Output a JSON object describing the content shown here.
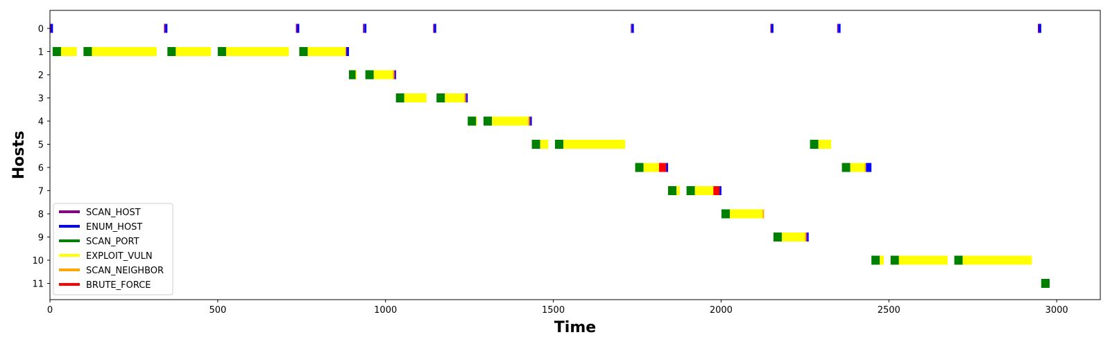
{
  "chart_data": {
    "type": "gantt",
    "xlabel": "Time",
    "ylabel": "Hosts",
    "xlim": [
      0,
      3130
    ],
    "x_ticks": [
      0,
      500,
      1000,
      1500,
      2000,
      2500,
      3000
    ],
    "hosts": [
      0,
      1,
      2,
      3,
      4,
      5,
      6,
      7,
      8,
      9,
      10,
      11
    ],
    "legend_position": "lower-left",
    "actions": [
      {
        "name": "SCAN_HOST",
        "color": "#800080"
      },
      {
        "name": "ENUM_HOST",
        "color": "#0000ff"
      },
      {
        "name": "SCAN_PORT",
        "color": "#008000"
      },
      {
        "name": "EXPLOIT_VULN",
        "color": "#ffff00"
      },
      {
        "name": "SCAN_NEIGHBOR",
        "color": "#ffa500"
      },
      {
        "name": "BRUTE_FORCE",
        "color": "#ff0000"
      }
    ],
    "segments": [
      {
        "host": 0,
        "action": "SCAN_HOST",
        "start": 0,
        "end": 3
      },
      {
        "host": 0,
        "action": "ENUM_HOST",
        "start": 3,
        "end": 9
      },
      {
        "host": 0,
        "action": "SCAN_HOST",
        "start": 340,
        "end": 344
      },
      {
        "host": 0,
        "action": "ENUM_HOST",
        "start": 344,
        "end": 350
      },
      {
        "host": 0,
        "action": "SCAN_HOST",
        "start": 733,
        "end": 737
      },
      {
        "host": 0,
        "action": "ENUM_HOST",
        "start": 737,
        "end": 743
      },
      {
        "host": 0,
        "action": "SCAN_HOST",
        "start": 933,
        "end": 937
      },
      {
        "host": 0,
        "action": "ENUM_HOST",
        "start": 937,
        "end": 943
      },
      {
        "host": 0,
        "action": "SCAN_HOST",
        "start": 1142,
        "end": 1145
      },
      {
        "host": 0,
        "action": "ENUM_HOST",
        "start": 1145,
        "end": 1151
      },
      {
        "host": 0,
        "action": "SCAN_HOST",
        "start": 1731,
        "end": 1734
      },
      {
        "host": 0,
        "action": "ENUM_HOST",
        "start": 1734,
        "end": 1740
      },
      {
        "host": 0,
        "action": "SCAN_HOST",
        "start": 2147,
        "end": 2150
      },
      {
        "host": 0,
        "action": "ENUM_HOST",
        "start": 2150,
        "end": 2156
      },
      {
        "host": 0,
        "action": "SCAN_HOST",
        "start": 2346,
        "end": 2349
      },
      {
        "host": 0,
        "action": "ENUM_HOST",
        "start": 2349,
        "end": 2356
      },
      {
        "host": 0,
        "action": "SCAN_HOST",
        "start": 2944,
        "end": 2947
      },
      {
        "host": 0,
        "action": "ENUM_HOST",
        "start": 2947,
        "end": 2954
      },
      {
        "host": 1,
        "action": "SCAN_PORT",
        "start": 8,
        "end": 33
      },
      {
        "host": 1,
        "action": "EXPLOIT_VULN",
        "start": 33,
        "end": 80
      },
      {
        "host": 1,
        "action": "SCAN_PORT",
        "start": 100,
        "end": 125
      },
      {
        "host": 1,
        "action": "EXPLOIT_VULN",
        "start": 125,
        "end": 318
      },
      {
        "host": 1,
        "action": "SCAN_PORT",
        "start": 350,
        "end": 375
      },
      {
        "host": 1,
        "action": "EXPLOIT_VULN",
        "start": 375,
        "end": 480
      },
      {
        "host": 1,
        "action": "SCAN_PORT",
        "start": 500,
        "end": 525
      },
      {
        "host": 1,
        "action": "EXPLOIT_VULN",
        "start": 525,
        "end": 712
      },
      {
        "host": 1,
        "action": "SCAN_PORT",
        "start": 743,
        "end": 768
      },
      {
        "host": 1,
        "action": "EXPLOIT_VULN",
        "start": 768,
        "end": 882
      },
      {
        "host": 1,
        "action": "SCAN_HOST",
        "start": 882,
        "end": 885
      },
      {
        "host": 1,
        "action": "ENUM_HOST",
        "start": 885,
        "end": 891
      },
      {
        "host": 2,
        "action": "SCAN_PORT",
        "start": 891,
        "end": 911
      },
      {
        "host": 2,
        "action": "EXPLOIT_VULN",
        "start": 911,
        "end": 914
      },
      {
        "host": 2,
        "action": "SCAN_PORT",
        "start": 940,
        "end": 965
      },
      {
        "host": 2,
        "action": "EXPLOIT_VULN",
        "start": 965,
        "end": 1022
      },
      {
        "host": 2,
        "action": "SCAN_NEIGHBOR",
        "start": 1022,
        "end": 1026
      },
      {
        "host": 2,
        "action": "SCAN_HOST",
        "start": 1026,
        "end": 1029
      },
      {
        "host": 2,
        "action": "ENUM_HOST",
        "start": 1029,
        "end": 1031
      },
      {
        "host": 3,
        "action": "SCAN_PORT",
        "start": 1031,
        "end": 1056
      },
      {
        "host": 3,
        "action": "EXPLOIT_VULN",
        "start": 1056,
        "end": 1122
      },
      {
        "host": 3,
        "action": "SCAN_PORT",
        "start": 1152,
        "end": 1177
      },
      {
        "host": 3,
        "action": "EXPLOIT_VULN",
        "start": 1177,
        "end": 1235
      },
      {
        "host": 3,
        "action": "SCAN_NEIGHBOR",
        "start": 1235,
        "end": 1239
      },
      {
        "host": 3,
        "action": "SCAN_HOST",
        "start": 1239,
        "end": 1242
      },
      {
        "host": 3,
        "action": "ENUM_HOST",
        "start": 1242,
        "end": 1245
      },
      {
        "host": 4,
        "action": "SCAN_PORT",
        "start": 1245,
        "end": 1270
      },
      {
        "host": 4,
        "action": "EXPLOIT_VULN",
        "start": 1270,
        "end": 1272
      },
      {
        "host": 4,
        "action": "SCAN_PORT",
        "start": 1292,
        "end": 1317
      },
      {
        "host": 4,
        "action": "EXPLOIT_VULN",
        "start": 1317,
        "end": 1425
      },
      {
        "host": 4,
        "action": "SCAN_NEIGHBOR",
        "start": 1425,
        "end": 1429
      },
      {
        "host": 4,
        "action": "SCAN_HOST",
        "start": 1429,
        "end": 1432
      },
      {
        "host": 4,
        "action": "ENUM_HOST",
        "start": 1432,
        "end": 1436
      },
      {
        "host": 5,
        "action": "SCAN_PORT",
        "start": 1436,
        "end": 1461
      },
      {
        "host": 5,
        "action": "EXPLOIT_VULN",
        "start": 1461,
        "end": 1485
      },
      {
        "host": 5,
        "action": "SCAN_PORT",
        "start": 1505,
        "end": 1530
      },
      {
        "host": 5,
        "action": "EXPLOIT_VULN",
        "start": 1530,
        "end": 1714
      },
      {
        "host": 5,
        "action": "SCAN_PORT",
        "start": 2265,
        "end": 2290
      },
      {
        "host": 5,
        "action": "EXPLOIT_VULN",
        "start": 2290,
        "end": 2328
      },
      {
        "host": 6,
        "action": "SCAN_PORT",
        "start": 1744,
        "end": 1769
      },
      {
        "host": 6,
        "action": "EXPLOIT_VULN",
        "start": 1769,
        "end": 1815
      },
      {
        "host": 6,
        "action": "BRUTE_FORCE",
        "start": 1815,
        "end": 1835
      },
      {
        "host": 6,
        "action": "SCAN_HOST",
        "start": 1835,
        "end": 1838
      },
      {
        "host": 6,
        "action": "ENUM_HOST",
        "start": 1838,
        "end": 1842
      },
      {
        "host": 6,
        "action": "SCAN_PORT",
        "start": 2360,
        "end": 2385
      },
      {
        "host": 6,
        "action": "EXPLOIT_VULN",
        "start": 2385,
        "end": 2428
      },
      {
        "host": 6,
        "action": "SCAN_NEIGHBOR",
        "start": 2428,
        "end": 2432
      },
      {
        "host": 6,
        "action": "ENUM_HOST",
        "start": 2432,
        "end": 2448
      },
      {
        "host": 7,
        "action": "SCAN_PORT",
        "start": 1842,
        "end": 1867
      },
      {
        "host": 7,
        "action": "EXPLOIT_VULN",
        "start": 1867,
        "end": 1877
      },
      {
        "host": 7,
        "action": "SCAN_PORT",
        "start": 1897,
        "end": 1922
      },
      {
        "host": 7,
        "action": "EXPLOIT_VULN",
        "start": 1922,
        "end": 1977
      },
      {
        "host": 7,
        "action": "BRUTE_FORCE",
        "start": 1977,
        "end": 1994
      },
      {
        "host": 7,
        "action": "SCAN_HOST",
        "start": 1994,
        "end": 1997
      },
      {
        "host": 7,
        "action": "ENUM_HOST",
        "start": 1997,
        "end": 2001
      },
      {
        "host": 8,
        "action": "SCAN_PORT",
        "start": 2001,
        "end": 2026
      },
      {
        "host": 8,
        "action": "EXPLOIT_VULN",
        "start": 2026,
        "end": 2124
      },
      {
        "host": 8,
        "action": "SCAN_NEIGHBOR",
        "start": 2124,
        "end": 2128
      },
      {
        "host": 9,
        "action": "SCAN_PORT",
        "start": 2156,
        "end": 2181
      },
      {
        "host": 9,
        "action": "EXPLOIT_VULN",
        "start": 2181,
        "end": 2250
      },
      {
        "host": 9,
        "action": "SCAN_NEIGHBOR",
        "start": 2250,
        "end": 2254
      },
      {
        "host": 9,
        "action": "SCAN_HOST",
        "start": 2254,
        "end": 2257
      },
      {
        "host": 9,
        "action": "ENUM_HOST",
        "start": 2257,
        "end": 2261
      },
      {
        "host": 10,
        "action": "SCAN_PORT",
        "start": 2448,
        "end": 2473
      },
      {
        "host": 10,
        "action": "EXPLOIT_VULN",
        "start": 2473,
        "end": 2485
      },
      {
        "host": 10,
        "action": "SCAN_PORT",
        "start": 2505,
        "end": 2530
      },
      {
        "host": 10,
        "action": "EXPLOIT_VULN",
        "start": 2530,
        "end": 2675
      },
      {
        "host": 10,
        "action": "SCAN_PORT",
        "start": 2695,
        "end": 2720
      },
      {
        "host": 10,
        "action": "EXPLOIT_VULN",
        "start": 2720,
        "end": 2926
      },
      {
        "host": 11,
        "action": "SCAN_PORT",
        "start": 2954,
        "end": 2979
      }
    ]
  }
}
